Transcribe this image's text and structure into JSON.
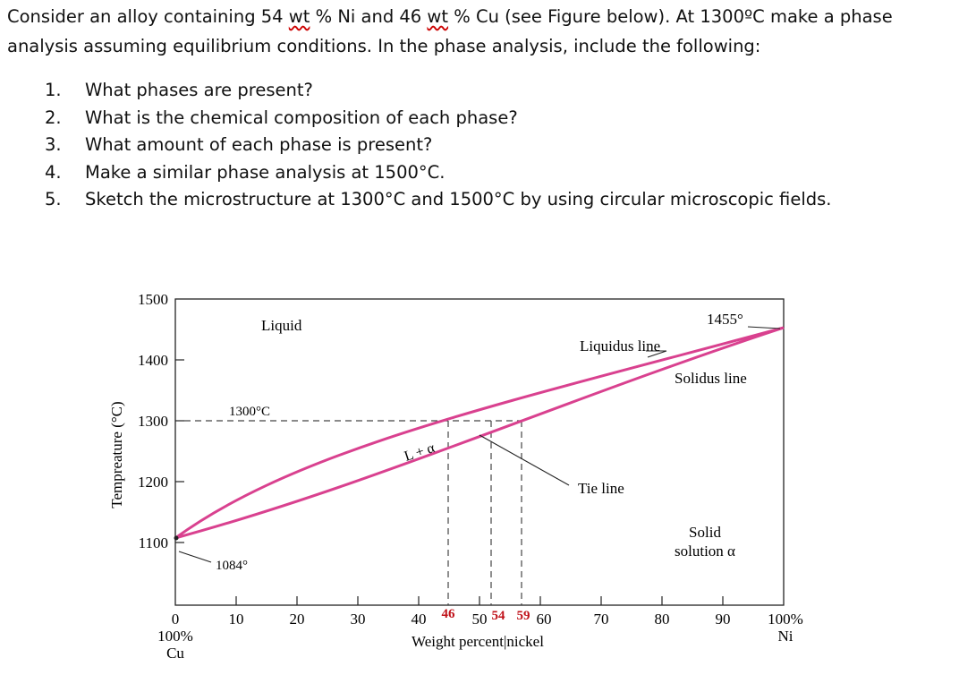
{
  "question": {
    "intro_a": "Consider an alloy containing 54 ",
    "wt1": "wt",
    "intro_b": " % Ni and 46 ",
    "wt2": "wt",
    "intro_c": " % Cu (see Figure below). At 1300ºC make a phase",
    "intro_line2": "analysis assuming equilibrium conditions. In the phase analysis, include the following:",
    "items": [
      {
        "num": "1.",
        "text": "What phases are present?"
      },
      {
        "num": "2.",
        "text": "What is the chemical composition of each phase?"
      },
      {
        "num": "3.",
        "text": "What amount of each phase is present?"
      },
      {
        "num": "4.",
        "text": "Make a similar phase analysis at 1500°C."
      },
      {
        "num": "5.",
        "text": "Sketch the microstructure at 1300°C and 1500°C by using circular microscopic fields."
      }
    ]
  },
  "figure": {
    "ylabel": "Tempreature (°C)",
    "xlabel": "Weight percent|nickel",
    "y_ticks": [
      "1500",
      "1400",
      "1300",
      "1200",
      "1100"
    ],
    "x_ticks": [
      "0",
      "10",
      "20",
      "30",
      "40",
      "50",
      "60",
      "70",
      "80",
      "90",
      "100%"
    ],
    "x_left_sub": [
      "100%",
      "Cu"
    ],
    "x_right_sub": "Ni",
    "red_labels": [
      "46",
      "54",
      "59"
    ],
    "labels": {
      "liquid": "Liquid",
      "liquidus": "Liquidus line",
      "solidus": "Solidus line",
      "two_phase": "L + α",
      "tie": "Tie line",
      "solid_line1": "Solid",
      "solid_line2": "solution α",
      "t1300": "1300°C",
      "cu_melt": "1084°",
      "ni_melt": "1455°"
    },
    "colors": {
      "curves": "#d9418f",
      "red_label": "#c0121a",
      "axes": "#222222"
    }
  },
  "chart_data": {
    "type": "line",
    "title": "",
    "xlabel": "Weight percent|nickel",
    "ylabel": "Tempreature (°C)",
    "xlim": [
      0,
      100
    ],
    "ylim": [
      1050,
      1500
    ],
    "series": [
      {
        "name": "Liquidus line",
        "x": [
          0,
          10,
          20,
          30,
          40,
          46,
          50,
          60,
          70,
          80,
          90,
          100
        ],
        "y": [
          1084,
          1145,
          1195,
          1240,
          1280,
          1300,
          1315,
          1345,
          1375,
          1405,
          1432,
          1455
        ]
      },
      {
        "name": "Solidus line",
        "x": [
          0,
          10,
          20,
          30,
          40,
          50,
          59,
          70,
          80,
          90,
          100
        ],
        "y": [
          1084,
          1105,
          1140,
          1175,
          1215,
          1255,
          1300,
          1340,
          1375,
          1412,
          1455
        ]
      }
    ],
    "annotations": [
      "1300°C",
      "1084°",
      "1455°",
      "46",
      "54",
      "59"
    ]
  }
}
